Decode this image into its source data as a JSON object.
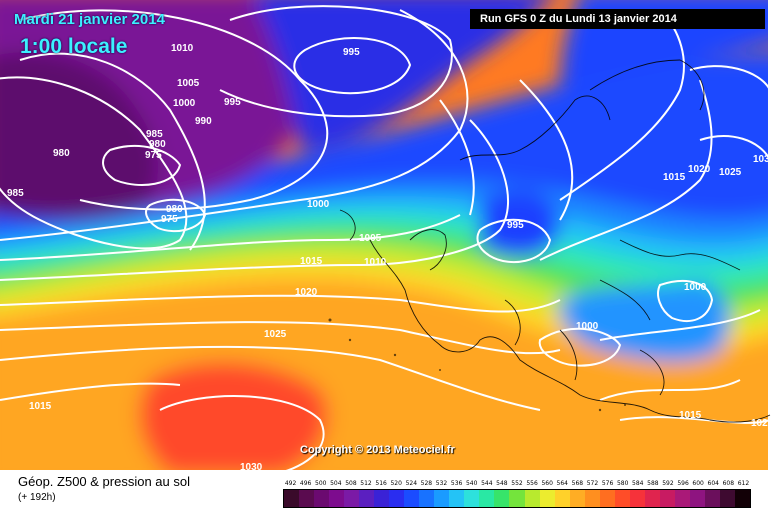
{
  "header": {
    "date": "Mardi 21 janvier 2014",
    "time": "1:00 locale",
    "run": "Run GFS 0 Z du Lundi 13 janvier 2014"
  },
  "copyright": "Copyright © 2013 Meteociel.fr",
  "footer": {
    "title": "Géop. Z500 & pression au sol",
    "subtitle": "(+ 192h)"
  },
  "isobar_labels": [
    "1010",
    "995",
    "1005",
    "1000",
    "995",
    "990",
    "985",
    "980",
    "975",
    "980",
    "985",
    "980",
    "975",
    "1000",
    "1005",
    "1010",
    "1015",
    "995",
    "1020",
    "1025",
    "1015",
    "1020",
    "1025",
    "1015",
    "1030",
    "1000",
    "1000",
    "1015",
    "102",
    "103"
  ],
  "legend": {
    "values": [
      "492",
      "496",
      "500",
      "504",
      "508",
      "512",
      "516",
      "520",
      "524",
      "528",
      "532",
      "536",
      "540",
      "544",
      "548",
      "552",
      "556",
      "560",
      "564",
      "568",
      "572",
      "576",
      "580",
      "584",
      "588",
      "592",
      "596",
      "600",
      "604",
      "608",
      "612"
    ],
    "colors": [
      "#3a0a2a",
      "#5a0b4f",
      "#6b0a70",
      "#7d0c8e",
      "#7b1aa6",
      "#5b1fc0",
      "#3a22d6",
      "#2a2df0",
      "#1b4cff",
      "#1872ff",
      "#1a9bff",
      "#24c3f6",
      "#2de1dc",
      "#29e8a4",
      "#37e46a",
      "#74e43c",
      "#b8ea2e",
      "#ecec2e",
      "#ffd12a",
      "#ffad24",
      "#ff8f1f",
      "#ff6e20",
      "#ff4d28",
      "#f6323a",
      "#e0244e",
      "#c81b62",
      "#aa1978",
      "#8e1480",
      "#6b0f5c",
      "#3e0a30",
      "#120006"
    ]
  }
}
